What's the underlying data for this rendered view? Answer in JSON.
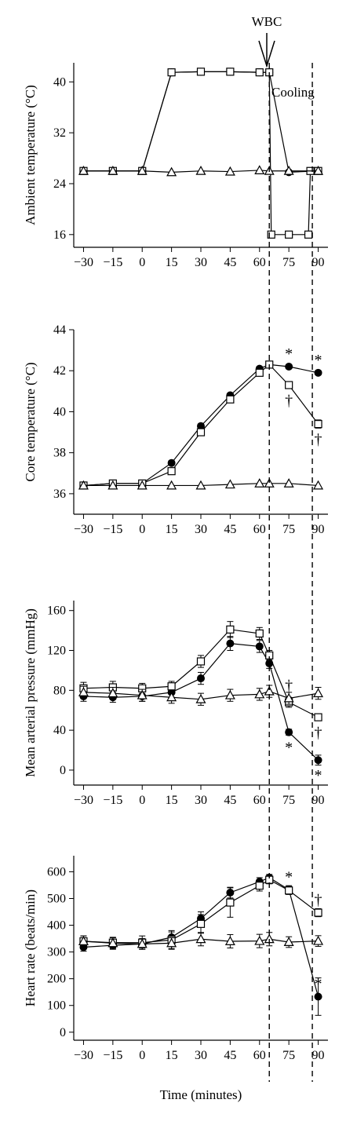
{
  "figure": {
    "x_label": "Time (minutes)",
    "annotations": {
      "arrow_label": "WBC",
      "cooling_label": "Cooling"
    },
    "marker_star": "*",
    "marker_dagger": "†",
    "dashed_lines_at": [
      65,
      87
    ]
  },
  "chart_data": [
    {
      "type": "line",
      "ylabel": "Ambient temperature (°C)",
      "xlabel": "",
      "x_ticks": [
        "−30",
        "−15",
        "0",
        "15",
        "30",
        "45",
        "60",
        "75",
        "90"
      ],
      "y_ticks": [
        "16",
        "24",
        "32",
        "40"
      ],
      "xlim": [
        -35,
        95
      ],
      "ylim": [
        14,
        43
      ],
      "series": [
        {
          "marker": "filled-circle",
          "x": [
            -30,
            -15,
            0,
            15,
            30,
            45,
            60,
            65,
            75,
            90
          ],
          "y": [
            26,
            26,
            26,
            41.5,
            41.6,
            41.6,
            41.5,
            41.5,
            25.8,
            26
          ]
        },
        {
          "marker": "open-square",
          "x": [
            -30,
            -15,
            0,
            15,
            30,
            45,
            60,
            65,
            66,
            75,
            85,
            86,
            90
          ],
          "y": [
            26,
            26,
            26,
            41.5,
            41.6,
            41.6,
            41.5,
            41.5,
            16,
            16,
            16,
            26,
            26
          ]
        },
        {
          "marker": "open-triangle",
          "x": [
            -30,
            -15,
            0,
            15,
            30,
            45,
            60,
            65,
            75,
            90
          ],
          "y": [
            26,
            26,
            26,
            25.8,
            26,
            25.9,
            26.1,
            26,
            26,
            26
          ]
        }
      ]
    },
    {
      "type": "line",
      "ylabel": "Core temperature (°C)",
      "xlabel": "",
      "x_ticks": [
        "−30",
        "−15",
        "0",
        "15",
        "30",
        "45",
        "60",
        "75",
        "90"
      ],
      "y_ticks": [
        "36",
        "38",
        "40",
        "42",
        "44"
      ],
      "xlim": [
        -35,
        95
      ],
      "ylim": [
        35,
        44
      ],
      "series": [
        {
          "marker": "filled-circle",
          "x": [
            -30,
            -15,
            0,
            15,
            30,
            45,
            60,
            65,
            75,
            90
          ],
          "y": [
            36.4,
            36.5,
            36.5,
            37.5,
            39.3,
            40.8,
            42.1,
            42.3,
            42.2,
            41.9
          ],
          "err": [
            0.1,
            0.1,
            0.1,
            0.1,
            0.1,
            0.1,
            0.1,
            0.1,
            0.1,
            0.1
          ]
        },
        {
          "marker": "open-square",
          "x": [
            -30,
            -15,
            0,
            15,
            30,
            45,
            60,
            65,
            75,
            90
          ],
          "y": [
            36.4,
            36.5,
            36.5,
            37.1,
            39.0,
            40.6,
            41.9,
            42.3,
            41.3,
            39.4
          ],
          "err": [
            0.1,
            0.1,
            0.1,
            0.1,
            0.1,
            0.1,
            0.1,
            0.1,
            0.1,
            0.2
          ]
        },
        {
          "marker": "open-triangle",
          "x": [
            -30,
            -15,
            0,
            15,
            30,
            45,
            60,
            65,
            75,
            90
          ],
          "y": [
            36.4,
            36.4,
            36.4,
            36.4,
            36.4,
            36.45,
            36.5,
            36.5,
            36.5,
            36.4
          ],
          "err": [
            0,
            0,
            0,
            0,
            0,
            0,
            0,
            0,
            0,
            0
          ]
        }
      ],
      "marks": [
        {
          "kind": "star",
          "x": 75,
          "y": 42.2,
          "offset": "above"
        },
        {
          "kind": "star",
          "x": 90,
          "y": 41.9,
          "offset": "above"
        },
        {
          "kind": "dagger",
          "x": 75,
          "y": 41.3,
          "offset": "below"
        },
        {
          "kind": "dagger",
          "x": 90,
          "y": 39.4,
          "offset": "below"
        }
      ]
    },
    {
      "type": "line",
      "ylabel": "Mean arterial pressure (mmHg)",
      "xlabel": "",
      "x_ticks": [
        "−30",
        "−15",
        "0",
        "15",
        "30",
        "45",
        "60",
        "75",
        "90"
      ],
      "y_ticks": [
        "0",
        "40",
        "80",
        "120",
        "160"
      ],
      "xlim": [
        -35,
        95
      ],
      "ylim": [
        -15,
        170
      ],
      "series": [
        {
          "marker": "filled-circle",
          "x": [
            -30,
            -15,
            0,
            15,
            30,
            45,
            60,
            65,
            75,
            90
          ],
          "y": [
            74,
            73,
            74,
            78,
            92,
            127,
            124,
            107,
            38,
            10
          ],
          "err": [
            5,
            5,
            5,
            5,
            6,
            7,
            6,
            5,
            3,
            5
          ]
        },
        {
          "marker": "open-square",
          "x": [
            -30,
            -15,
            0,
            15,
            30,
            45,
            60,
            65,
            75,
            90
          ],
          "y": [
            82,
            83,
            82,
            84,
            109,
            141,
            137,
            115,
            68,
            53
          ],
          "err": [
            6,
            6,
            5,
            5,
            6,
            8,
            6,
            5,
            5,
            3
          ]
        },
        {
          "marker": "open-triangle",
          "x": [
            -30,
            -15,
            0,
            15,
            30,
            45,
            60,
            65,
            75,
            90
          ],
          "y": [
            78,
            77,
            75,
            73,
            71,
            75,
            76,
            79,
            72,
            77
          ],
          "err": [
            6,
            6,
            6,
            6,
            6,
            6,
            6,
            6,
            6,
            6
          ]
        }
      ],
      "marks": [
        {
          "kind": "dagger",
          "x": 75,
          "y": 72,
          "offset": "above"
        },
        {
          "kind": "star",
          "x": 75,
          "y": 38,
          "offset": "below"
        },
        {
          "kind": "dagger",
          "x": 90,
          "y": 53,
          "offset": "below"
        },
        {
          "kind": "star",
          "x": 90,
          "y": 10,
          "offset": "below"
        }
      ]
    },
    {
      "type": "line",
      "ylabel": "Heart rate (beats/min)",
      "xlabel": "Time (minutes)",
      "x_ticks": [
        "−30",
        "−15",
        "0",
        "15",
        "30",
        "45",
        "60",
        "75",
        "90"
      ],
      "y_ticks": [
        "0",
        "100",
        "200",
        "300",
        "400",
        "500",
        "600"
      ],
      "xlim": [
        -35,
        95
      ],
      "ylim": [
        -30,
        660
      ],
      "series": [
        {
          "marker": "filled-circle",
          "x": [
            -30,
            -15,
            0,
            15,
            30,
            45,
            60,
            65,
            75,
            90
          ],
          "y": [
            318,
            325,
            330,
            355,
            425,
            522,
            563,
            578,
            533,
            133
          ],
          "err": [
            15,
            15,
            15,
            20,
            25,
            20,
            15,
            12,
            15,
            70
          ]
        },
        {
          "marker": "open-square",
          "x": [
            -30,
            -15,
            0,
            15,
            30,
            45,
            60,
            65,
            75,
            90
          ],
          "y": [
            340,
            335,
            335,
            345,
            405,
            485,
            548,
            570,
            530,
            447
          ],
          "err": [
            20,
            20,
            25,
            35,
            35,
            55,
            20,
            15,
            15,
            15
          ]
        },
        {
          "marker": "open-triangle",
          "x": [
            -30,
            -15,
            0,
            15,
            30,
            45,
            60,
            65,
            75,
            90
          ],
          "y": [
            340,
            333,
            330,
            333,
            348,
            340,
            341,
            348,
            337,
            341
          ],
          "err": [
            20,
            20,
            20,
            20,
            25,
            25,
            25,
            25,
            20,
            20
          ]
        }
      ],
      "marks": [
        {
          "kind": "star",
          "x": 75,
          "y": 533,
          "offset": "above"
        },
        {
          "kind": "dagger",
          "x": 90,
          "y": 447,
          "offset": "above"
        },
        {
          "kind": "star",
          "x": 90,
          "y": 133,
          "offset": "above"
        }
      ]
    }
  ]
}
